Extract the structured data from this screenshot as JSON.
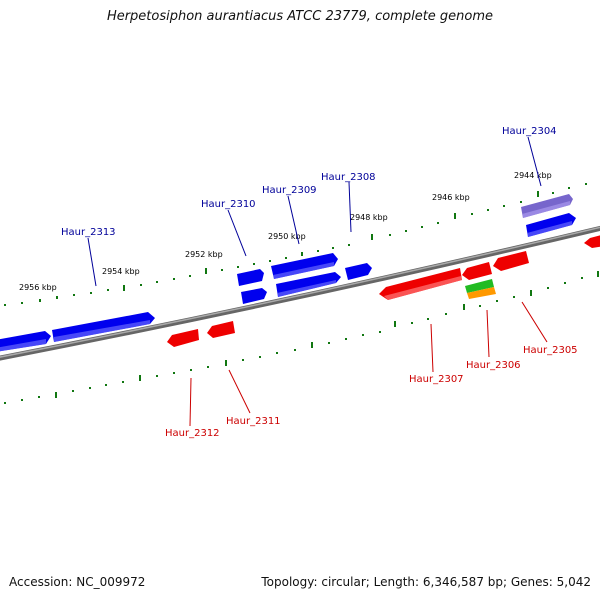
{
  "title": "Herpetosiphon aurantiacus ATCC 23779, complete genome",
  "footer": {
    "accession": "Accession: NC_009972",
    "stats": "Topology: circular; Length: 6,346,587 bp; Genes: 5,042"
  },
  "scale_labels": [
    "2956 kbp",
    "2954 kbp",
    "2952 kbp",
    "2950 kbp",
    "2948 kbp",
    "2946 kbp",
    "2944 kbp"
  ],
  "genes_top": [
    "Haur_2313",
    "Haur_2310",
    "Haur_2309",
    "Haur_2308",
    "Haur_2304"
  ],
  "genes_bottom": [
    "Haur_2312",
    "Haur_2311",
    "Haur_2307",
    "Haur_2306",
    "Haur_2305"
  ],
  "colors": {
    "forward_gene": "#0000ee",
    "reverse_gene": "#ee0000",
    "highlight_gene": "#7766cc",
    "rna_gene_1": "#22bb22",
    "rna_gene_2": "#ff9900",
    "backbone": "#888888",
    "tick": "#117711",
    "forward_label": "#000099",
    "reverse_label": "#cc0000"
  }
}
